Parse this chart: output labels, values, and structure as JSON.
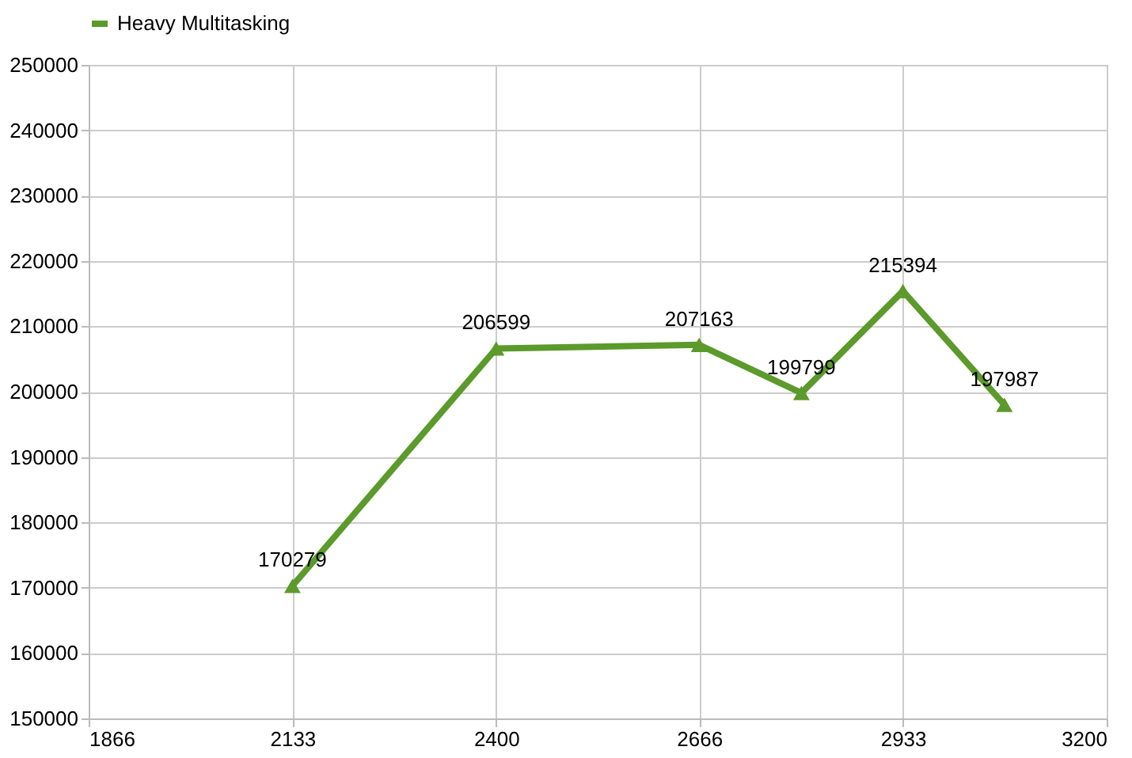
{
  "chart_data": {
    "type": "line",
    "x": [
      2133,
      2400,
      2666,
      2800,
      2933,
      3066
    ],
    "series": [
      {
        "name": "Heavy Multitasking",
        "color": "#5b9a2b",
        "values": [
          170279,
          206599,
          207163,
          199799,
          215394,
          197987
        ]
      }
    ],
    "xlim": [
      1866,
      3200
    ],
    "xticks": [
      1866,
      2133,
      2400,
      2666,
      2933,
      3200
    ],
    "ylim": [
      150000,
      250000
    ],
    "yticks": [
      150000,
      160000,
      170000,
      180000,
      190000,
      200000,
      210000,
      220000,
      230000,
      240000,
      250000
    ],
    "grid": true,
    "legend": "top",
    "marker": "triangle",
    "line_style": "solid",
    "data_labels": true
  }
}
